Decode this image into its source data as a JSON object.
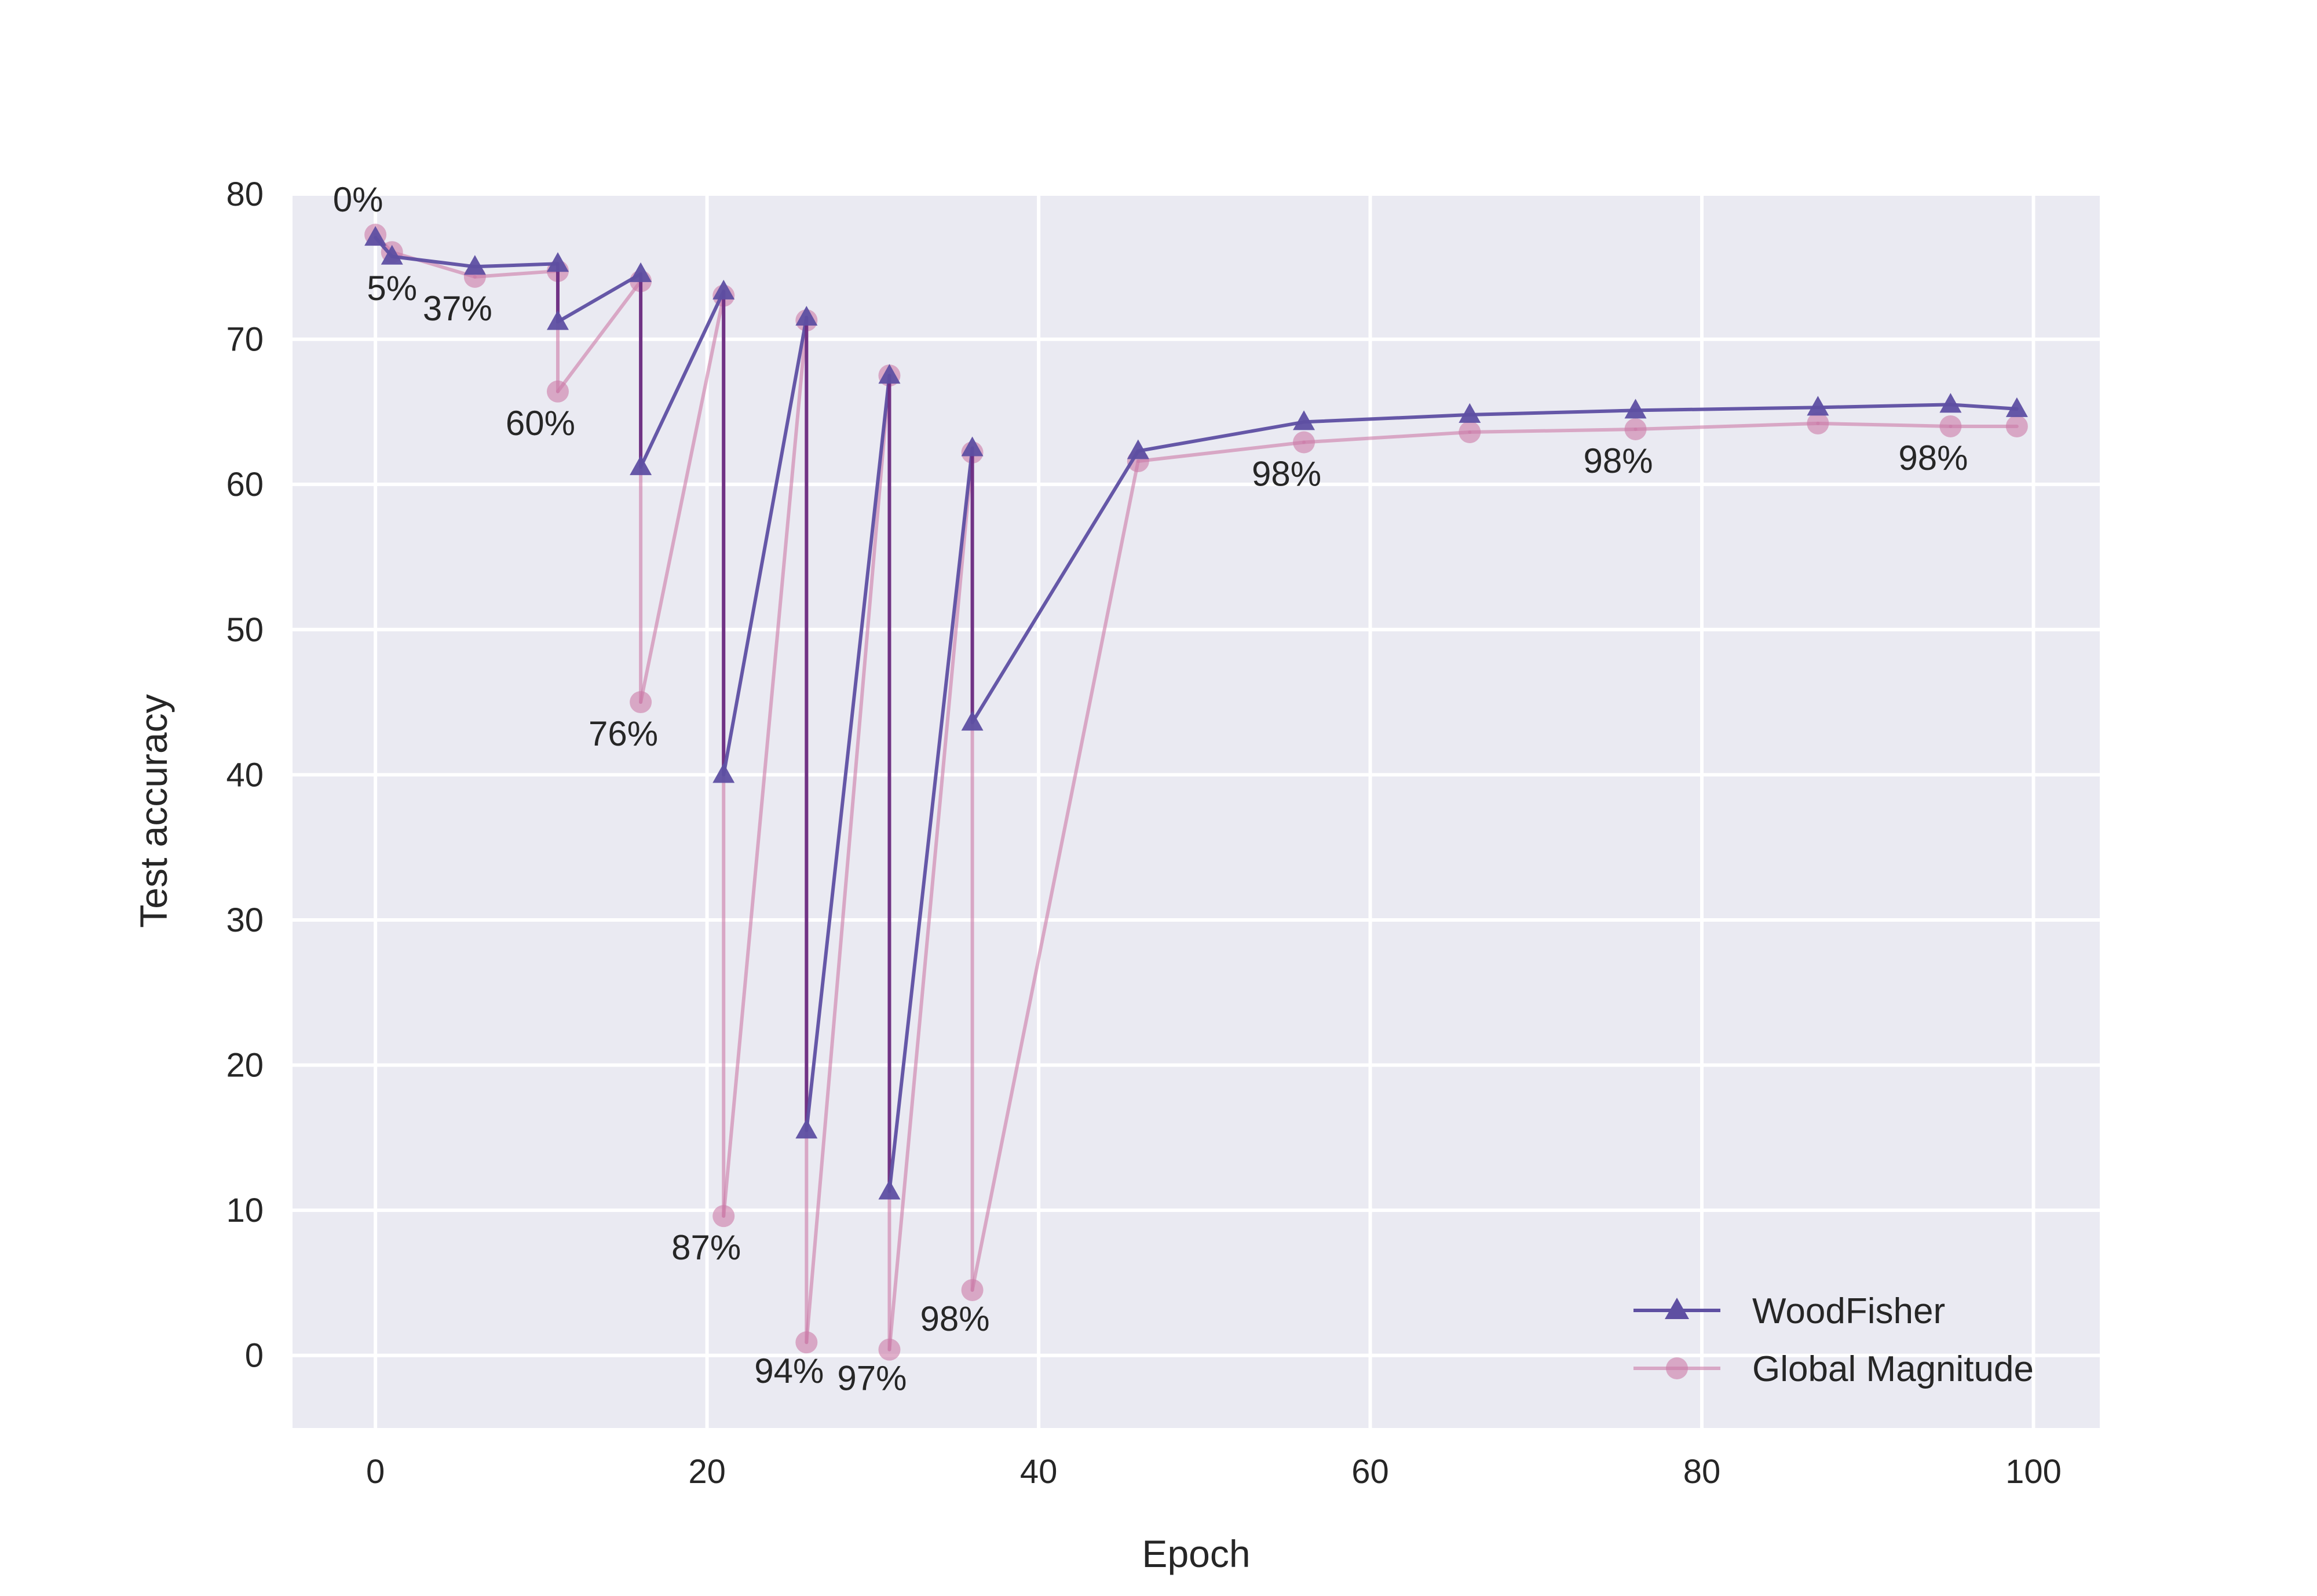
{
  "chart_data": {
    "type": "line",
    "title": "",
    "xlabel": "Epoch",
    "ylabel": "Test accuracy",
    "xlim": [
      -5,
      104
    ],
    "ylim": [
      -5,
      80
    ],
    "xticks": [
      0,
      20,
      40,
      60,
      80,
      100
    ],
    "yticks": [
      0,
      10,
      20,
      30,
      40,
      50,
      60,
      70,
      80
    ],
    "grid": true,
    "legend_position": "bottom-right",
    "colors": {
      "background": "#eaeaf2",
      "grid": "#ffffff",
      "woodfisher": "#5e4fa2",
      "woodfisher_vertical": "#6a2c82",
      "global_magnitude": "#cc79a7"
    },
    "series": [
      {
        "name": "WoodFisher",
        "marker": "triangle",
        "x": [
          0,
          1,
          6,
          11,
          11,
          16,
          16,
          21,
          21,
          26,
          26,
          31,
          31,
          36,
          36,
          46,
          56,
          66,
          76,
          87,
          95,
          99
        ],
        "y": [
          77.0,
          75.7,
          75.0,
          75.2,
          71.2,
          74.5,
          61.2,
          73.3,
          40.0,
          71.5,
          15.5,
          67.5,
          11.3,
          62.5,
          43.6,
          62.3,
          64.3,
          64.8,
          65.1,
          65.3,
          65.5,
          65.2
        ]
      },
      {
        "name": "Global Magnitude",
        "marker": "circle",
        "x": [
          0,
          1,
          6,
          11,
          11,
          16,
          16,
          21,
          21,
          26,
          26,
          31,
          31,
          36,
          36,
          46,
          56,
          66,
          76,
          87,
          95,
          99
        ],
        "y": [
          77.2,
          76.0,
          74.3,
          74.7,
          66.4,
          74.0,
          45.0,
          73.0,
          9.6,
          71.3,
          0.9,
          67.5,
          0.4,
          62.2,
          4.5,
          61.6,
          62.9,
          63.6,
          63.8,
          64.2,
          64.0,
          64.0
        ]
      }
    ],
    "annotations": [
      {
        "text": "0%",
        "x": 0,
        "y": 77.2
      },
      {
        "text": "5%",
        "x": 1,
        "y": 75.7
      },
      {
        "text": "37%",
        "x": 6,
        "y": 74.3
      },
      {
        "text": "60%",
        "x": 11,
        "y": 66.4
      },
      {
        "text": "76%",
        "x": 16,
        "y": 45.0
      },
      {
        "text": "87%",
        "x": 21,
        "y": 9.6
      },
      {
        "text": "94%",
        "x": 26,
        "y": 0.9
      },
      {
        "text": "97%",
        "x": 31,
        "y": 0.4
      },
      {
        "text": "98%",
        "x": 36,
        "y": 4.5
      },
      {
        "text": "98%",
        "x": 56,
        "y": 62.9
      },
      {
        "text": "98%",
        "x": 76,
        "y": 63.8
      },
      {
        "text": "98%",
        "x": 95,
        "y": 64.0
      }
    ]
  }
}
